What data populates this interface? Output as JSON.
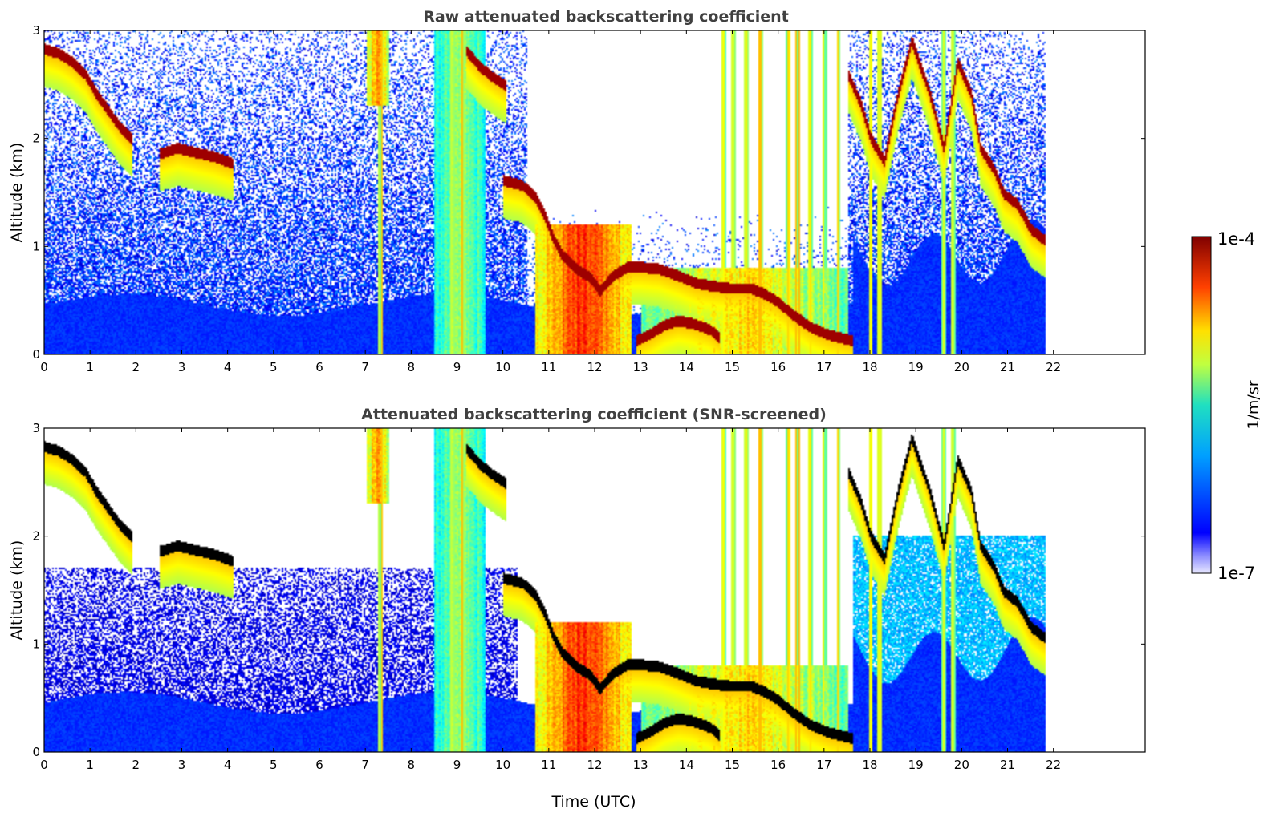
{
  "chart_data": [
    {
      "type": "heatmap",
      "title": "Raw attenuated backscattering coefficient",
      "xlabel": "",
      "ylabel": "Altitude (km)",
      "xlim": [
        0,
        24
      ],
      "ylim": [
        0,
        3
      ],
      "x_ticks": [
        "0",
        "1",
        "2",
        "3",
        "4",
        "5",
        "6",
        "7",
        "8",
        "9",
        "10",
        "11",
        "12",
        "13",
        "14",
        "15",
        "16",
        "17",
        "18",
        "19",
        "20",
        "21",
        "22"
      ],
      "y_ticks": [
        "0",
        "1",
        "2",
        "3"
      ],
      "data_end_hour": 21.8,
      "screened": false
    },
    {
      "type": "heatmap",
      "title": "Attenuated backscattering coefficient (SNR-screened)",
      "xlabel": "Time (UTC)",
      "ylabel": "Altitude (km)",
      "xlim": [
        0,
        24
      ],
      "ylim": [
        0,
        3
      ],
      "x_ticks": [
        "0",
        "1",
        "2",
        "3",
        "4",
        "5",
        "6",
        "7",
        "8",
        "9",
        "10",
        "11",
        "12",
        "13",
        "14",
        "15",
        "16",
        "17",
        "18",
        "19",
        "20",
        "21",
        "22"
      ],
      "y_ticks": [
        "0",
        "1",
        "2",
        "3"
      ],
      "data_end_hour": 21.8,
      "screened": true
    }
  ],
  "colorbar": {
    "label": "1/m/sr",
    "max_label": "1e-4",
    "min_label": "1e-7",
    "colormap": "jet",
    "scale": "log"
  },
  "features": {
    "cloud_layers": [
      {
        "name": "descending cloud top",
        "points": [
          [
            0.0,
            2.82
          ],
          [
            0.3,
            2.78
          ],
          [
            0.6,
            2.7
          ],
          [
            0.9,
            2.58
          ],
          [
            1.1,
            2.42
          ],
          [
            1.3,
            2.3
          ],
          [
            1.6,
            2.12
          ],
          [
            1.9,
            1.98
          ]
        ]
      },
      {
        "name": "cloud layer 3-4h",
        "points": [
          [
            2.5,
            1.85
          ],
          [
            2.9,
            1.9
          ],
          [
            3.3,
            1.86
          ],
          [
            3.7,
            1.82
          ],
          [
            4.1,
            1.76
          ]
        ]
      },
      {
        "name": "upper cloud 9-10h",
        "points": [
          [
            9.2,
            2.8
          ],
          [
            9.5,
            2.65
          ],
          [
            9.8,
            2.55
          ],
          [
            10.05,
            2.48
          ]
        ]
      },
      {
        "name": "boundary layer top",
        "points": [
          [
            10.0,
            1.6
          ],
          [
            10.4,
            1.56
          ],
          [
            10.7,
            1.45
          ],
          [
            10.9,
            1.28
          ],
          [
            11.1,
            1.05
          ],
          [
            11.3,
            0.9
          ],
          [
            11.6,
            0.78
          ],
          [
            11.9,
            0.7
          ],
          [
            12.1,
            0.58
          ],
          [
            12.4,
            0.72
          ],
          [
            12.7,
            0.8
          ],
          [
            13.0,
            0.8
          ],
          [
            13.4,
            0.78
          ],
          [
            13.8,
            0.72
          ],
          [
            14.2,
            0.65
          ],
          [
            14.6,
            0.62
          ],
          [
            15.0,
            0.6
          ],
          [
            15.4,
            0.6
          ],
          [
            15.7,
            0.55
          ],
          [
            16.0,
            0.47
          ],
          [
            16.3,
            0.36
          ],
          [
            16.7,
            0.24
          ],
          [
            17.1,
            0.17
          ],
          [
            17.6,
            0.12
          ]
        ]
      },
      {
        "name": "low cloud 13-14.5h",
        "points": [
          [
            12.9,
            0.12
          ],
          [
            13.2,
            0.18
          ],
          [
            13.5,
            0.26
          ],
          [
            13.8,
            0.3
          ],
          [
            14.1,
            0.28
          ],
          [
            14.5,
            0.22
          ],
          [
            14.7,
            0.15
          ]
        ]
      },
      {
        "name": "cloud tops 18-21h",
        "points": [
          [
            17.5,
            2.6
          ],
          [
            17.8,
            2.3
          ],
          [
            18.0,
            2.0
          ],
          [
            18.3,
            1.78
          ],
          [
            18.6,
            2.4
          ],
          [
            18.9,
            2.9
          ],
          [
            19.3,
            2.4
          ],
          [
            19.6,
            1.9
          ],
          [
            19.9,
            2.7
          ],
          [
            20.2,
            2.4
          ],
          [
            20.4,
            1.9
          ],
          [
            20.7,
            1.7
          ],
          [
            20.9,
            1.48
          ],
          [
            21.2,
            1.38
          ],
          [
            21.5,
            1.15
          ],
          [
            21.8,
            1.05
          ]
        ]
      }
    ],
    "precip_bands": [
      {
        "x0": 7.0,
        "x1": 7.5,
        "y0": 2.3,
        "y1": 3.0,
        "intensity": 0.75
      },
      {
        "x0": 8.5,
        "x1": 9.6,
        "y0": 0.0,
        "y1": 3.0,
        "intensity": 0.55
      },
      {
        "x0": 10.7,
        "x1": 12.8,
        "y0": 0.0,
        "y1": 1.2,
        "intensity": 0.85
      },
      {
        "x0": 13.0,
        "x1": 17.5,
        "y0": 0.0,
        "y1": 0.8,
        "intensity": 0.65
      }
    ],
    "vertical_streaks": [
      7.3,
      8.9,
      9.1,
      14.8,
      15.0,
      15.3,
      15.6,
      16.2,
      16.4,
      16.7,
      17.0,
      17.3,
      18.0,
      18.2,
      19.6,
      19.8
    ]
  }
}
